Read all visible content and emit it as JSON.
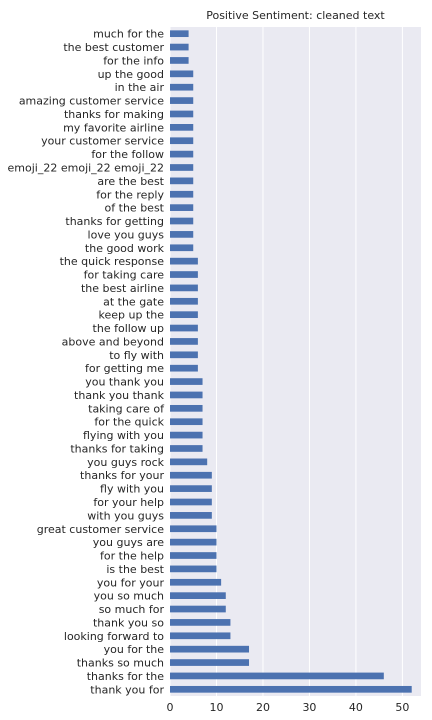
{
  "chart_data": {
    "type": "bar",
    "orientation": "horizontal",
    "title": "Positive Sentiment: cleaned text",
    "xlabel": "",
    "ylabel": "",
    "xlim": [
      0,
      54
    ],
    "xticks": [
      0,
      10,
      20,
      30,
      40,
      50
    ],
    "grid": true,
    "bar_color": "#4c72b0",
    "background_color": "#eaeaf2",
    "categories": [
      "much for the",
      "the best customer",
      "for the info",
      "up the good",
      "in the air",
      "amazing customer service",
      "thanks for making",
      "my favorite airline",
      "your customer service",
      "for the follow",
      "emoji_22 emoji_22 emoji_22",
      "are the best",
      "for the reply",
      "of the best",
      "thanks for getting",
      "love you guys",
      "the good work",
      "the quick response",
      "for taking care",
      "the best airline",
      "at the gate",
      "keep up the",
      "the follow up",
      "above and beyond",
      "to fly with",
      "for getting me",
      "you thank you",
      "thank you thank",
      "taking care of",
      "for the quick",
      "flying with you",
      "thanks for taking",
      "you guys rock",
      "thanks for your",
      "fly with you",
      "for your help",
      "with you guys",
      "great customer service",
      "you guys are",
      "for the help",
      "is the best",
      "you for your",
      "you so much",
      "so much for",
      "thank you so",
      "looking forward to",
      "you for the",
      "thanks so much",
      "thanks for the",
      "thank you for"
    ],
    "values": [
      4,
      4,
      4,
      5,
      5,
      5,
      5,
      5,
      5,
      5,
      5,
      5,
      5,
      5,
      5,
      5,
      5,
      6,
      6,
      6,
      6,
      6,
      6,
      6,
      6,
      6,
      7,
      7,
      7,
      7,
      7,
      7,
      8,
      9,
      9,
      9,
      9,
      10,
      10,
      10,
      10,
      11,
      12,
      12,
      13,
      13,
      17,
      17,
      46,
      52
    ]
  }
}
